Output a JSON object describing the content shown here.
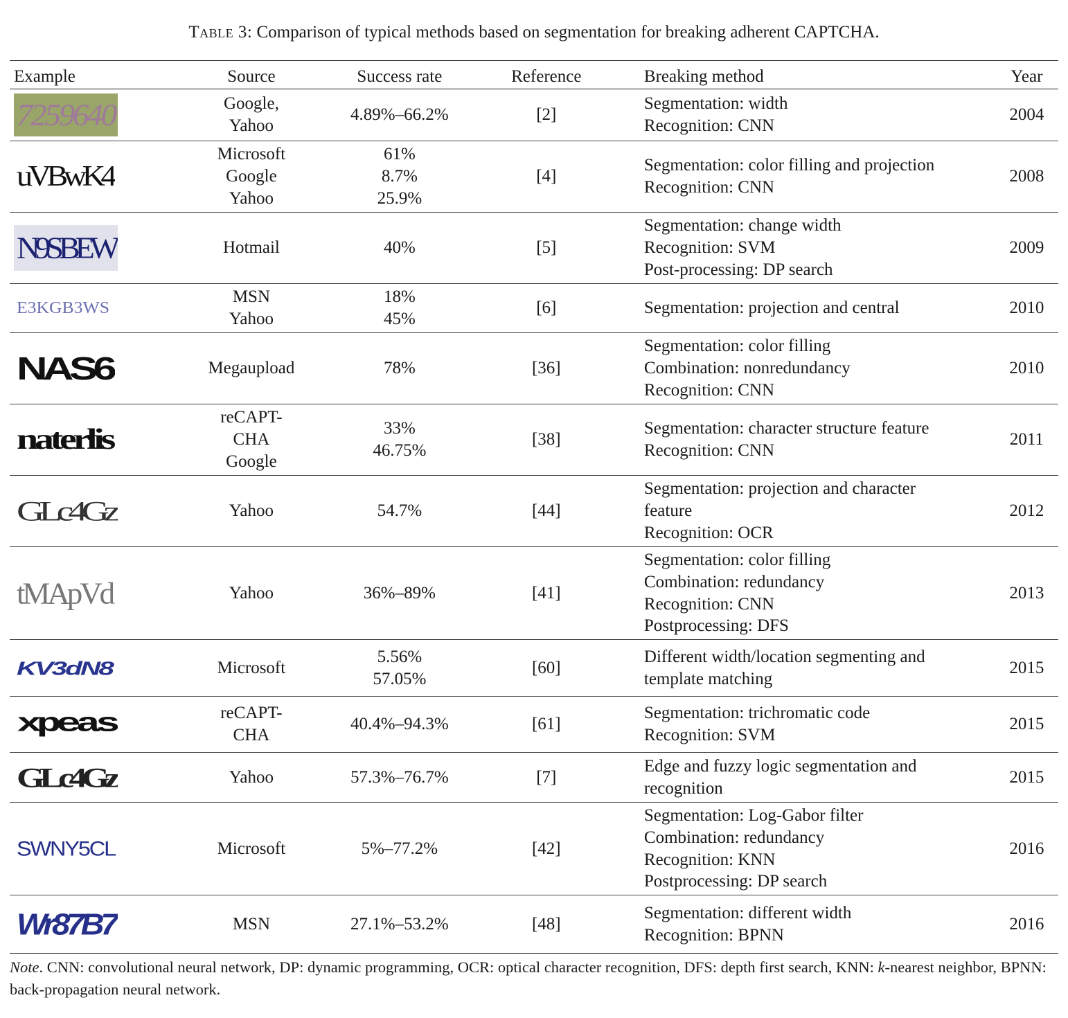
{
  "caption": {
    "label": "Table 3:",
    "text": "Comparison of typical methods based on segmentation for breaking adherent CAPTCHA."
  },
  "headers": [
    "Example",
    "Source",
    "Success rate",
    "Reference",
    "Breaking method",
    "Year"
  ],
  "rows": [
    {
      "captcha": "7259640",
      "source": [
        "Google,",
        "Yahoo"
      ],
      "rate": [
        "4.89%–66.2%"
      ],
      "ref": "[2]",
      "method": [
        "Segmentation: width",
        "Recognition: CNN"
      ],
      "year": "2004"
    },
    {
      "captcha": "uVBwK4",
      "source": [
        "Microsoft",
        "Google",
        "Yahoo"
      ],
      "rate": [
        "61%",
        "8.7%",
        "25.9%"
      ],
      "ref": "[4]",
      "method": [
        "Segmentation: color filling and projection",
        "Recognition: CNN"
      ],
      "year": "2008"
    },
    {
      "captcha": "N9SBEW",
      "source": [
        "Hotmail"
      ],
      "rate": [
        "40%"
      ],
      "ref": "[5]",
      "method": [
        "Segmentation: change width",
        "Recognition: SVM",
        "Post-processing: DP search"
      ],
      "year": "2009"
    },
    {
      "captcha": "E3KGB3WS",
      "source": [
        "MSN",
        "Yahoo"
      ],
      "rate": [
        "18%",
        "45%"
      ],
      "ref": "[6]",
      "method": [
        "Segmentation: projection and central"
      ],
      "year": "2010"
    },
    {
      "captcha": "NAS6",
      "source": [
        "Megaupload"
      ],
      "rate": [
        "78%"
      ],
      "ref": "[36]",
      "method": [
        "Segmentation: color filling",
        "Combination: nonredundancy",
        "Recognition: CNN"
      ],
      "year": "2010"
    },
    {
      "captcha": "naterlis",
      "source": [
        "reCAPT-",
        "CHA",
        "Google"
      ],
      "rate": [
        "33%",
        "46.75%"
      ],
      "ref": "[38]",
      "method": [
        "Segmentation: character structure feature",
        "Recognition: CNN"
      ],
      "year": "2011"
    },
    {
      "captcha": "GLc4Gz",
      "source": [
        "Yahoo"
      ],
      "rate": [
        "54.7%"
      ],
      "ref": "[44]",
      "method": [
        "Segmentation: projection and character",
        "feature",
        "Recognition: OCR"
      ],
      "year": "2012"
    },
    {
      "captcha": "tMApVd",
      "source": [
        "Yahoo"
      ],
      "rate": [
        "36%–89%"
      ],
      "ref": "[41]",
      "method": [
        "Segmentation: color filling",
        "Combination: redundancy",
        "Recognition: CNN",
        "Postprocessing: DFS"
      ],
      "year": "2013"
    },
    {
      "captcha": "KV3dN8",
      "source": [
        "Microsoft"
      ],
      "rate": [
        "5.56%",
        "57.05%"
      ],
      "ref": "[60]",
      "method": [
        "Different width/location segmenting and",
        "template matching"
      ],
      "year": "2015"
    },
    {
      "captcha": "xpeas",
      "source": [
        "reCAPT-",
        "CHA"
      ],
      "rate": [
        "40.4%–94.3%"
      ],
      "ref": "[61]",
      "method": [
        "Segmentation: trichromatic code",
        "Recognition: SVM"
      ],
      "year": "2015"
    },
    {
      "captcha": "GLc4Gz",
      "source": [
        "Yahoo"
      ],
      "rate": [
        "57.3%–76.7%"
      ],
      "ref": "[7]",
      "method": [
        "Edge and fuzzy logic segmentation and",
        "recognition"
      ],
      "year": "2015"
    },
    {
      "captcha": "SWNY5CL",
      "source": [
        "Microsoft"
      ],
      "rate": [
        "5%–77.2%"
      ],
      "ref": "[42]",
      "method": [
        "Segmentation: Log-Gabor filter",
        "Combination: redundancy",
        "Recognition: KNN",
        "Postprocessing: DP search"
      ],
      "year": "2016"
    },
    {
      "captcha": "Wr87B7",
      "source": [
        "MSN"
      ],
      "rate": [
        "27.1%–53.2%"
      ],
      "ref": "[48]",
      "method": [
        "Segmentation: different width",
        "Recognition: BPNN"
      ],
      "year": "2016"
    }
  ],
  "note": {
    "label": "Note",
    "text": ". CNN: convolutional neural network, DP: dynamic programming, OCR: optical character recognition, DFS: depth first search, KNN: ",
    "k": "k",
    "text2": "-nearest neighbor, BPNN: back-propagation neural network."
  }
}
